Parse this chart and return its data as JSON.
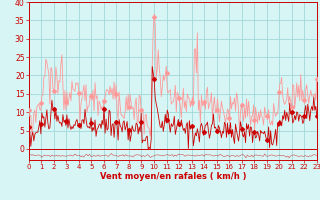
{
  "xlabel": "Vent moyen/en rafales ( km/h )",
  "bg_color": "#d8f5f5",
  "grid_color": "#a0d8d8",
  "line_color_avg": "#cc0000",
  "line_color_gust": "#ff9999",
  "ylim": [
    -3,
    40
  ],
  "xlim": [
    0,
    23
  ],
  "yticks": [
    0,
    5,
    10,
    15,
    20,
    25,
    30,
    35,
    40
  ],
  "xticks": [
    0,
    1,
    2,
    3,
    4,
    5,
    6,
    7,
    8,
    9,
    10,
    11,
    12,
    13,
    14,
    15,
    16,
    17,
    18,
    19,
    20,
    21,
    22,
    23
  ],
  "seed_avg": 101,
  "seed_gust": 202
}
